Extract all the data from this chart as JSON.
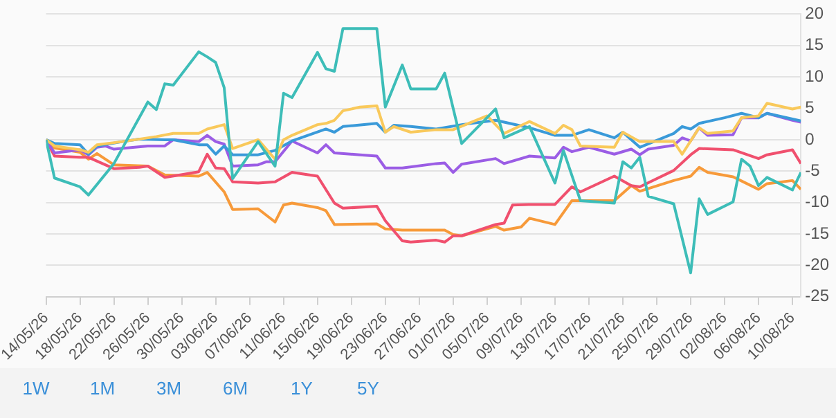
{
  "chart_data": {
    "type": "line",
    "xlim": [
      "--05-14",
      "--08-11"
    ],
    "xticks": [
      {
        "value": "--05-14",
        "label": "14/05/26"
      },
      {
        "value": "--05-18",
        "label": "18/05/26"
      },
      {
        "value": "--05-22",
        "label": "22/05/26"
      },
      {
        "value": "--05-26",
        "label": "26/05/26"
      },
      {
        "value": "--05-30",
        "label": "30/05/26"
      },
      {
        "value": "--06-03",
        "label": "03/06/26"
      },
      {
        "value": "--06-07",
        "label": "07/06/26"
      },
      {
        "value": "--06-11",
        "label": "11/06/26"
      },
      {
        "value": "--06-15",
        "label": "15/06/26"
      },
      {
        "value": "--06-19",
        "label": "19/06/26"
      },
      {
        "value": "--06-23",
        "label": "23/06/26"
      },
      {
        "value": "--06-27",
        "label": "27/06/26"
      },
      {
        "value": "--07-01",
        "label": "01/07/26"
      },
      {
        "value": "--07-05",
        "label": "05/07/26"
      },
      {
        "value": "--07-09",
        "label": "09/07/26"
      },
      {
        "value": "--07-13",
        "label": "13/07/26"
      },
      {
        "value": "--07-17",
        "label": "17/07/26"
      },
      {
        "value": "--07-21",
        "label": "21/07/26"
      },
      {
        "value": "--07-25",
        "label": "25/07/26"
      },
      {
        "value": "--07-29",
        "label": "29/07/26"
      },
      {
        "value": "--08-02",
        "label": "02/08/26"
      },
      {
        "value": "--08-06",
        "label": "06/08/26"
      },
      {
        "value": "--08-10",
        "label": "10/08/26"
      }
    ],
    "ylim": [
      -25,
      20
    ],
    "yticks": [
      -25,
      -20,
      -15,
      -10,
      -5,
      0,
      5,
      10,
      15,
      20
    ],
    "grid": "y",
    "legend": false,
    "marker": "none",
    "line_style": "solid",
    "annotations": [
      "1W",
      "1M",
      "3M",
      "6M",
      "1Y",
      "5Y"
    ],
    "series": [
      {
        "color": "#3dbdb8",
        "x": [
          "--05-14",
          "--05-15",
          "--05-18",
          "--05-19",
          "--05-22",
          "--05-26",
          "--05-27",
          "--05-28",
          "--05-29",
          "--06-01",
          "--06-02",
          "--06-03",
          "--06-04",
          "--06-05",
          "--06-08",
          "--06-10",
          "--06-11",
          "--06-12",
          "--06-15",
          "--06-16",
          "--06-17",
          "--06-18",
          "--06-22",
          "--06-23",
          "--06-25",
          "--06-26",
          "--06-29",
          "--06-30",
          "--07-02",
          "--07-06",
          "--07-07",
          "--07-10",
          "--07-13",
          "--07-14",
          "--07-16",
          "--07-20",
          "--07-21",
          "--07-22",
          "--07-23",
          "--07-24",
          "--07-27",
          "--07-29",
          "--07-30",
          "--07-31",
          "--08-03",
          "--08-04",
          "--08-05",
          "--08-06",
          "--08-07",
          "--08-10",
          "--08-11"
        ],
        "values": [
          0,
          -6.1,
          -7.5,
          -8.8,
          -3.8,
          6,
          4.8,
          8.9,
          8.7,
          14,
          13.2,
          12.3,
          8.3,
          -6.2,
          -0.3,
          -4.2,
          7.4,
          6.7,
          13.9,
          11.3,
          10.9,
          17.7,
          17.7,
          5.2,
          11.9,
          8.1,
          8.1,
          10.6,
          -0.6,
          4.9,
          0.3,
          2.1,
          -6.9,
          -1.7,
          -9.7,
          -10.1,
          -3.5,
          -4.5,
          -2.8,
          -9,
          -10.2,
          -21.2,
          -9.4,
          -11.9,
          -9.9,
          -3.1,
          -4.2,
          -7.3,
          -6,
          -8,
          -5.2
        ]
      },
      {
        "color": "#f9c95b",
        "x": [
          "--05-14",
          "--05-15",
          "--05-18",
          "--05-19",
          "--05-20",
          "--05-23",
          "--05-27",
          "--05-29",
          "--06-01",
          "--06-02",
          "--06-04",
          "--06-05",
          "--06-08",
          "--06-10",
          "--06-11",
          "--06-12",
          "--06-15",
          "--06-16",
          "--06-17",
          "--06-18",
          "--06-20",
          "--06-22",
          "--06-23",
          "--06-24",
          "--06-26",
          "--06-29",
          "--07-01",
          "--07-05",
          "--07-07",
          "--07-10",
          "--07-13",
          "--07-14",
          "--07-15",
          "--07-16",
          "--07-20",
          "--07-21",
          "--07-23",
          "--07-27",
          "--07-28",
          "--07-30",
          "--07-31",
          "--08-03",
          "--08-04",
          "--08-06",
          "--08-07",
          "--08-10",
          "--08-11"
        ],
        "values": [
          0,
          -1,
          -1.6,
          -2,
          -0.8,
          -0.3,
          0.5,
          1,
          1,
          1.7,
          2.4,
          -1.4,
          0,
          -3.1,
          0,
          0.7,
          2.4,
          2.6,
          3.1,
          4.6,
          5.2,
          5.4,
          1.2,
          2.1,
          1.2,
          1.6,
          1.6,
          3.8,
          1,
          2.9,
          1,
          2.3,
          1.6,
          -1,
          -1.2,
          1.2,
          -0.3,
          -0.3,
          -2.3,
          1.9,
          1,
          1.4,
          3.5,
          3.8,
          5.8,
          4.9,
          5.2
        ]
      },
      {
        "color": "#3a9ad9",
        "x": [
          "--05-14",
          "--05-15",
          "--05-18",
          "--05-19",
          "--05-20",
          "--05-23",
          "--05-25",
          "--05-28",
          "--05-29",
          "--06-01",
          "--06-02",
          "--06-03",
          "--06-04",
          "--06-05",
          "--06-08",
          "--06-10",
          "--06-12",
          "--06-16",
          "--06-17",
          "--06-18",
          "--06-22",
          "--06-23",
          "--06-24",
          "--06-26",
          "--06-29",
          "--07-02",
          "--07-06",
          "--07-10",
          "--07-13",
          "--07-15",
          "--07-17",
          "--07-20",
          "--07-21",
          "--07-23",
          "--07-27",
          "--07-28",
          "--07-29",
          "--07-30",
          "--08-02",
          "--08-04",
          "--08-06",
          "--08-07",
          "--08-10",
          "--08-11"
        ],
        "values": [
          0,
          -0.6,
          -0.8,
          -2.3,
          -1,
          -0.3,
          0.1,
          0,
          0,
          -0.8,
          -0.8,
          -2.3,
          -1,
          -2.4,
          -2.4,
          -1.7,
          -0.2,
          1.7,
          1.2,
          2.1,
          2.6,
          1.2,
          2.3,
          2.1,
          1.7,
          2.4,
          3.1,
          1.9,
          0.7,
          0.7,
          1.6,
          0.3,
          1.2,
          -1.2,
          1,
          2.1,
          1.7,
          2.6,
          3.5,
          4.2,
          3.5,
          4.2,
          3.3,
          3
        ]
      },
      {
        "color": "#9b5de5",
        "x": [
          "--05-14",
          "--05-15",
          "--05-18",
          "--05-19",
          "--05-20",
          "--05-21",
          "--05-22",
          "--05-26",
          "--05-28",
          "--05-29",
          "--06-01",
          "--06-02",
          "--06-03",
          "--06-04",
          "--06-05",
          "--06-08",
          "--06-09",
          "--06-10",
          "--06-12",
          "--06-15",
          "--06-16",
          "--06-17",
          "--06-20",
          "--06-22",
          "--06-23",
          "--06-25",
          "--06-29",
          "--06-30",
          "--07-01",
          "--07-02",
          "--07-06",
          "--07-07",
          "--07-10",
          "--07-13",
          "--07-14",
          "--07-15",
          "--07-17",
          "--07-20",
          "--07-22",
          "--07-23",
          "--07-24",
          "--07-27",
          "--07-28",
          "--07-29",
          "--07-30",
          "--07-31",
          "--08-03",
          "--08-04",
          "--08-06",
          "--08-07",
          "--08-10",
          "--08-11"
        ],
        "values": [
          0,
          -2.1,
          -1.6,
          -2.4,
          -1.2,
          -1,
          -1.5,
          -1,
          -1,
          0,
          -0.3,
          0.7,
          -0.3,
          -0.7,
          -4.2,
          -4,
          -3.5,
          -3.5,
          -0.2,
          -2.1,
          -0.8,
          -2.1,
          -2.4,
          -2.6,
          -4.5,
          -4.5,
          -3.8,
          -3.7,
          -5.2,
          -3.9,
          -3,
          -3.8,
          -2.6,
          -2.9,
          -1.2,
          -1.9,
          -1.2,
          -2.3,
          -1.5,
          -2.4,
          -1.5,
          -0.9,
          0.3,
          -0.2,
          1.9,
          0.7,
          0.8,
          3.5,
          3.5,
          4.2,
          3.1,
          2.8
        ]
      },
      {
        "color": "#f0506e",
        "x": [
          "--05-14",
          "--05-15",
          "--05-18",
          "--05-19",
          "--05-22",
          "--05-25",
          "--05-26",
          "--05-28",
          "--06-01",
          "--06-02",
          "--06-03",
          "--06-04",
          "--06-05",
          "--06-08",
          "--06-10",
          "--06-12",
          "--06-15",
          "--06-17",
          "--06-18",
          "--06-22",
          "--06-23",
          "--06-25",
          "--06-26",
          "--06-29",
          "--06-30",
          "--07-01",
          "--07-02",
          "--07-06",
          "--07-07",
          "--07-08",
          "--07-10",
          "--07-13",
          "--07-15",
          "--07-16",
          "--07-20",
          "--07-22",
          "--07-23",
          "--07-27",
          "--07-29",
          "--07-30",
          "--08-03",
          "--08-06",
          "--08-07",
          "--08-10",
          "--08-11"
        ],
        "values": [
          0,
          -2.6,
          -2.8,
          -2.8,
          -4.6,
          -4.4,
          -4.2,
          -6,
          -5.1,
          -2.3,
          -4.5,
          -4.6,
          -6.7,
          -6.9,
          -6.7,
          -5.2,
          -5.8,
          -10.1,
          -10.9,
          -10.6,
          -12.9,
          -16.1,
          -16.3,
          -16,
          -16.3,
          -15.3,
          -15.3,
          -13.5,
          -13.3,
          -10.4,
          -10.3,
          -10.3,
          -7.5,
          -8.3,
          -5.8,
          -7.3,
          -7.5,
          -4.9,
          -2.4,
          -1.4,
          -1.6,
          -3,
          -2.4,
          -1.6,
          -3.8
        ]
      },
      {
        "color": "#f79a3a",
        "x": [
          "--05-14",
          "--05-15",
          "--05-18",
          "--05-19",
          "--05-20",
          "--05-22",
          "--05-26",
          "--05-28",
          "--06-01",
          "--06-02",
          "--06-04",
          "--06-05",
          "--06-08",
          "--06-10",
          "--06-11",
          "--06-12",
          "--06-15",
          "--06-16",
          "--06-17",
          "--06-22",
          "--06-23",
          "--06-25",
          "--06-30",
          "--07-01",
          "--07-02",
          "--07-06",
          "--07-07",
          "--07-09",
          "--07-10",
          "--07-13",
          "--07-15",
          "--07-20",
          "--07-22",
          "--07-23",
          "--07-27",
          "--07-29",
          "--07-30",
          "--07-31",
          "--08-03",
          "--08-06",
          "--08-07",
          "--08-10",
          "--08-11"
        ],
        "values": [
          0,
          -1.3,
          -2,
          -3.1,
          -2.2,
          -4,
          -4.2,
          -5.6,
          -5.8,
          -5.2,
          -8.3,
          -11.1,
          -11,
          -13.1,
          -10.4,
          -10.1,
          -10.8,
          -11.3,
          -13.5,
          -13.4,
          -14.2,
          -14.4,
          -14.4,
          -15.1,
          -15.3,
          -13.8,
          -14.4,
          -13.9,
          -12.5,
          -13.5,
          -9.7,
          -9.7,
          -7.3,
          -8.2,
          -6.5,
          -5.8,
          -4.4,
          -5.2,
          -5.9,
          -7.9,
          -7,
          -6.5,
          -7.9
        ]
      }
    ]
  }
}
